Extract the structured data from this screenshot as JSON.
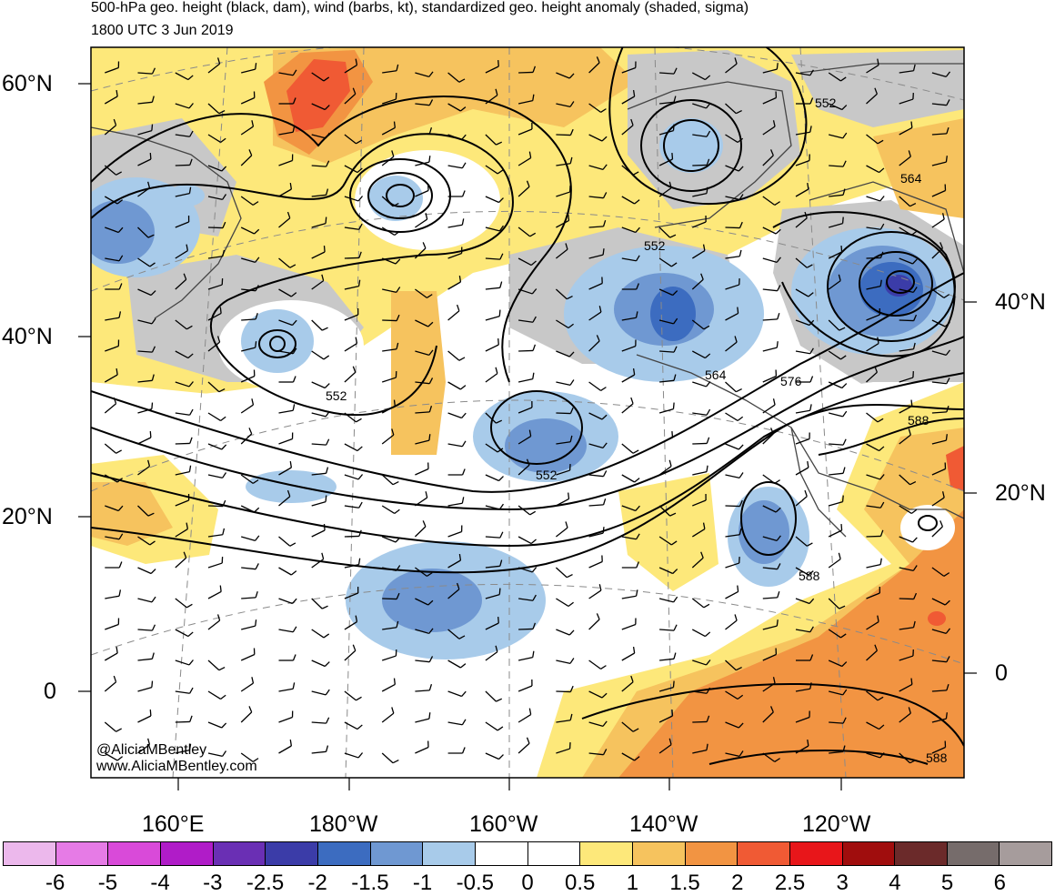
{
  "title": "500-hPa geo. height (black, dam), wind (barbs, kt), standardized geo. height anomaly (shaded, sigma)",
  "subtitle": "1800 UTC 3 Jun 2019",
  "credits": [
    "@AliciaMBentley",
    "www.AliciaMBentley.com"
  ],
  "lat_labels_left": [
    "60°N",
    "40°N",
    "20°N",
    "0"
  ],
  "lat_labels_right": [
    "40°N",
    "20°N",
    "0"
  ],
  "lon_labels": [
    "160°E",
    "180°W",
    "160°W",
    "140°W",
    "120°W"
  ],
  "contour_labels": [
    "552",
    "564",
    "552",
    "552",
    "564",
    "576",
    "588",
    "552",
    "588",
    "588"
  ],
  "colorbar": {
    "labels": [
      "-6",
      "-5",
      "-4",
      "-3",
      "-2.5",
      "-2",
      "-1.5",
      "-1",
      "-0.5",
      "0",
      "0.5",
      "1",
      "1.5",
      "2",
      "2.5",
      "3",
      "4",
      "5",
      "6"
    ],
    "colors": [
      "#ecb8ec",
      "#e67be6",
      "#d94ad9",
      "#b01cc8",
      "#6a2fb4",
      "#3b3ca8",
      "#3c6cc0",
      "#6f98d2",
      "#a8cbea",
      "#ffffff",
      "#ffffff",
      "#fde87a",
      "#f6c35e",
      "#f29442",
      "#f05a34",
      "#e8161a",
      "#a00d0d",
      "#6b2a2a",
      "#766c6b",
      "#a69c9c"
    ]
  },
  "anomaly_colors": {
    "neg_strong": "#3c6cc0",
    "neg_mod": "#6f98d2",
    "neg_weak": "#a8cbea",
    "pos_weak": "#fde87a",
    "pos_mod": "#f6c35e",
    "pos_strong": "#f29442",
    "pos_vstrong": "#f05a34",
    "land_gray": "#c8c8c8"
  }
}
